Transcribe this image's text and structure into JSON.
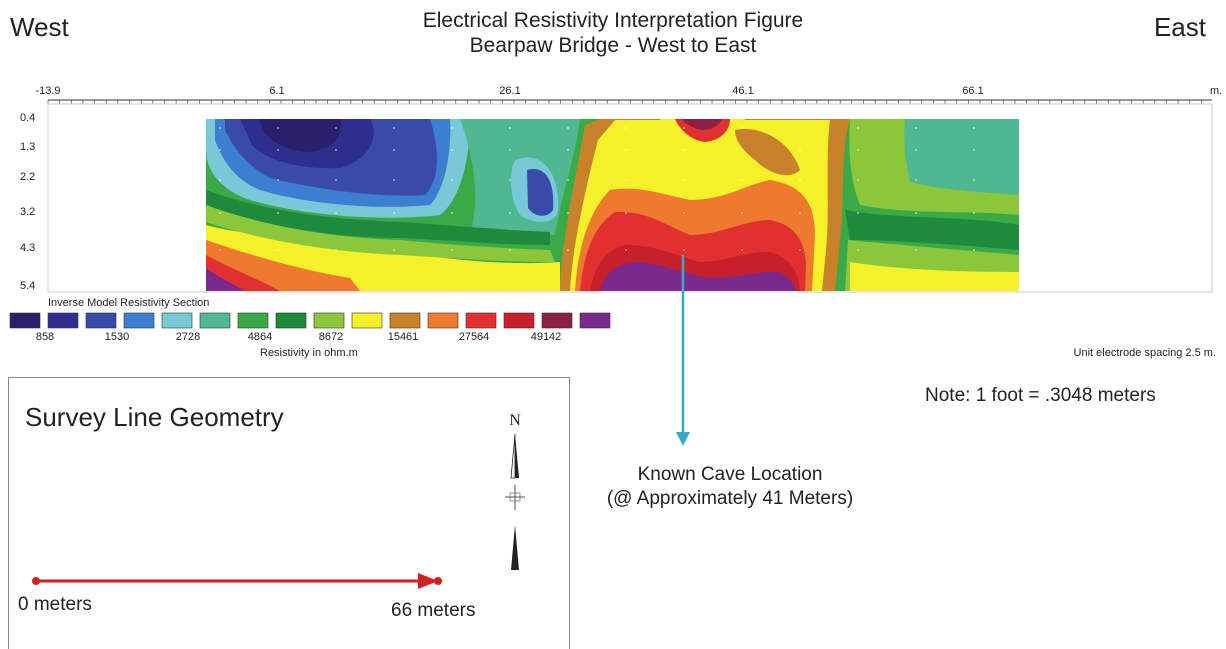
{
  "header": {
    "west": "West",
    "east": "East",
    "title_line1": "Electrical Resistivity Interpretation Figure",
    "title_line2": "Bearpaw Bridge - West to East"
  },
  "section": {
    "x_ticks": [
      "-13.9",
      "6.1",
      "26.1",
      "46.1",
      "66.1"
    ],
    "x_unit": "m.",
    "depth_ticks": [
      "0.4",
      "1.3",
      "2.2",
      "3.2",
      "4.3",
      "5.4"
    ]
  },
  "legend": {
    "title": "Inverse Model Resistivity Section",
    "unit": "Resistivity in ohm.m",
    "values": [
      "858",
      "1530",
      "2728",
      "4864",
      "8672",
      "15461",
      "27564",
      "49142"
    ],
    "colors": [
      "#2a1f6b",
      "#2e2e8e",
      "#3a4aa8",
      "#3b7fd0",
      "#78c8d8",
      "#4fb890",
      "#3aaa48",
      "#1e8a3c",
      "#8cc63a",
      "#f4f02a",
      "#c8832a",
      "#ee7a30",
      "#e23030",
      "#c8202a",
      "#8c2040",
      "#7a2a8c"
    ]
  },
  "notes": {
    "spacing": "Unit electrode spacing 2.5 m.",
    "conversion": "Note: 1 foot = .3048 meters"
  },
  "annotation": {
    "cave_line1": "Known Cave Location",
    "cave_line2": "(@ Approximately 41 Meters)"
  },
  "geometry": {
    "title": "Survey Line Geometry",
    "north": "N",
    "start": "0 meters",
    "end": "66 meters"
  }
}
